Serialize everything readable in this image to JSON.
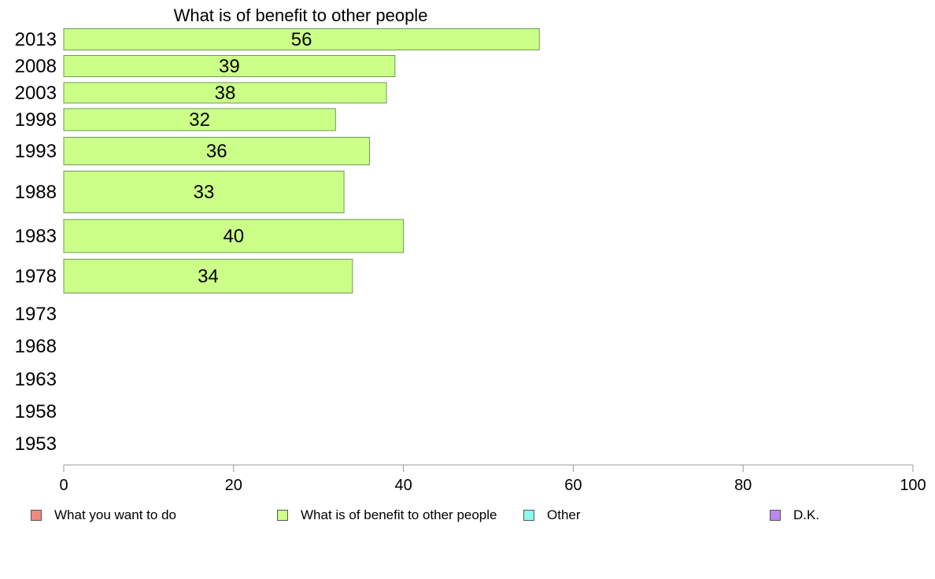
{
  "chart_data": {
    "type": "bar",
    "orientation": "horizontal",
    "title": "What is of benefit to other people",
    "categories": [
      "2013",
      "2008",
      "2003",
      "1998",
      "1993",
      "1988",
      "1983",
      "1978",
      "1973",
      "1968",
      "1963",
      "1958",
      "1953"
    ],
    "series": [
      {
        "name": "What is of benefit to other people",
        "color": "#ccff88",
        "values": [
          56,
          39,
          38,
          32,
          36,
          33,
          40,
          34,
          null,
          null,
          null,
          null,
          null
        ]
      }
    ],
    "xlim": [
      0,
      100
    ],
    "xticks": [
      0,
      20,
      40,
      60,
      80,
      100
    ],
    "grid": false,
    "legend_position": "bottom",
    "legend": [
      {
        "label": "What you want to do",
        "color": "#f08880"
      },
      {
        "label": "What is of benefit to other people",
        "color": "#ccff88"
      },
      {
        "label": "Other",
        "color": "#88ffee"
      },
      {
        "label": "D.K.",
        "color": "#bb88ee"
      }
    ]
  }
}
